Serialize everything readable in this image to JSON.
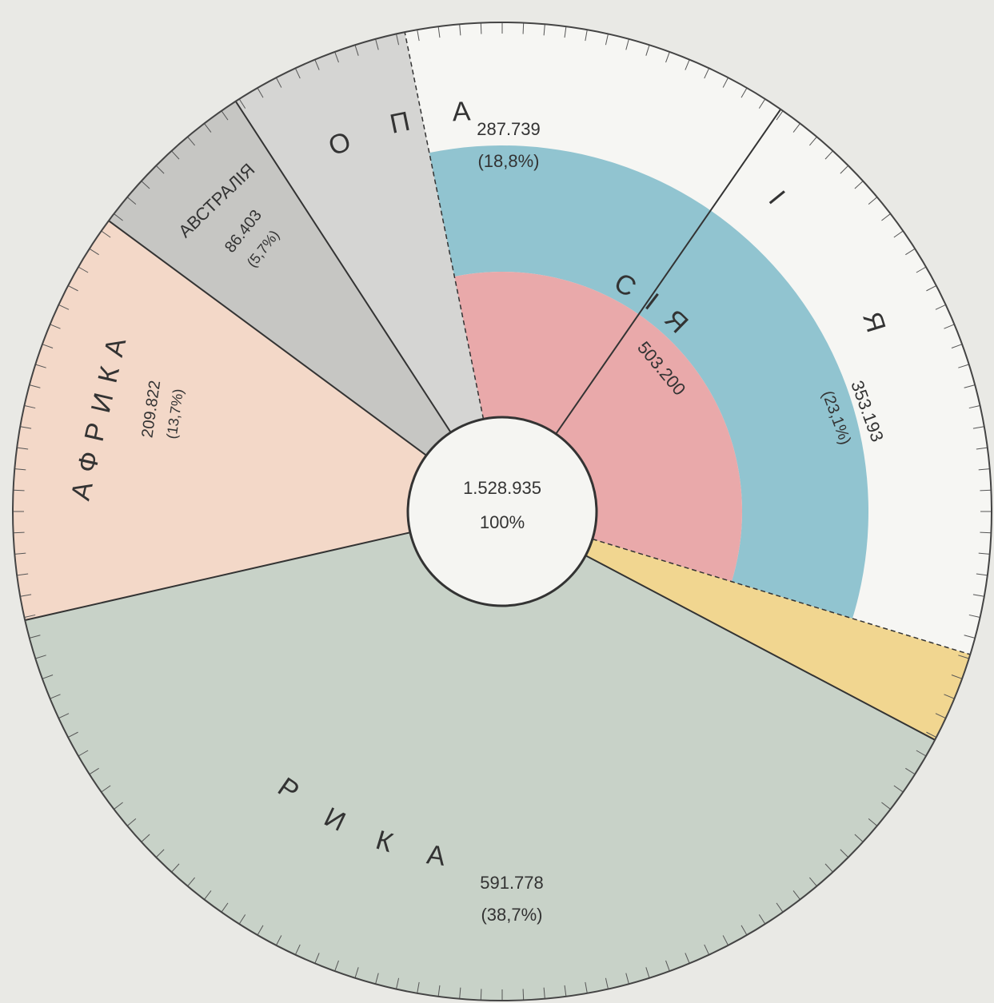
{
  "chart_data": {
    "type": "pie",
    "total": {
      "value": 1528935,
      "label": "1.528.935"
    },
    "total_percent": {
      "value": 100,
      "label": "100%"
    },
    "categories": [
      "ЕВРОПА",
      "АЗІЯ",
      "АМЕРИКА",
      "АФРИКА",
      "АВСТРАЛІЯ"
    ],
    "values": [
      287739,
      353193,
      591778,
      209822,
      86403
    ],
    "value_labels": [
      "287.739",
      "353.193",
      "591.778",
      "209.822",
      "86.403"
    ],
    "percents": [
      18.8,
      23.1,
      38.7,
      13.7,
      5.7
    ],
    "percent_labels": [
      "(18,8%)",
      "(23,1%)",
      "(38,7%)",
      "(13,7%)",
      "(5,7%)"
    ],
    "colors": [
      "#d5d5d3",
      "#f1d690",
      "#c8d2c8",
      "#f3d8c8",
      "#c6c6c3"
    ],
    "overlay": {
      "name": "РОССІЯ",
      "value": 503200,
      "value_label": "503.200",
      "colors": [
        "#f6f6f3",
        "#91c4d0",
        "#e9a9aa"
      ]
    }
  }
}
